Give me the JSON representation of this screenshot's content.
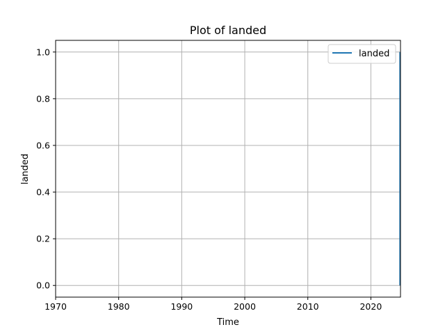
{
  "chart_data": {
    "type": "line",
    "title": "Plot of landed",
    "xlabel": "Time",
    "ylabel": "landed",
    "xlim": [
      1970,
      2024.7
    ],
    "ylim": [
      -0.05,
      1.05
    ],
    "xticks": [
      1970,
      1980,
      1990,
      2000,
      2010,
      2020
    ],
    "xtick_labels": [
      "1970",
      "1980",
      "1990",
      "2000",
      "2010",
      "2020"
    ],
    "yticks": [
      0.0,
      0.2,
      0.4,
      0.6,
      0.8,
      1.0
    ],
    "ytick_labels": [
      "0.0",
      "0.2",
      "0.4",
      "0.6",
      "0.8",
      "1.0"
    ],
    "grid": true,
    "legend_position": "top-right",
    "series": [
      {
        "name": "landed",
        "color": "#1f77b4",
        "x": [
          2024.6,
          2024.6
        ],
        "y": [
          0,
          1
        ]
      }
    ]
  }
}
